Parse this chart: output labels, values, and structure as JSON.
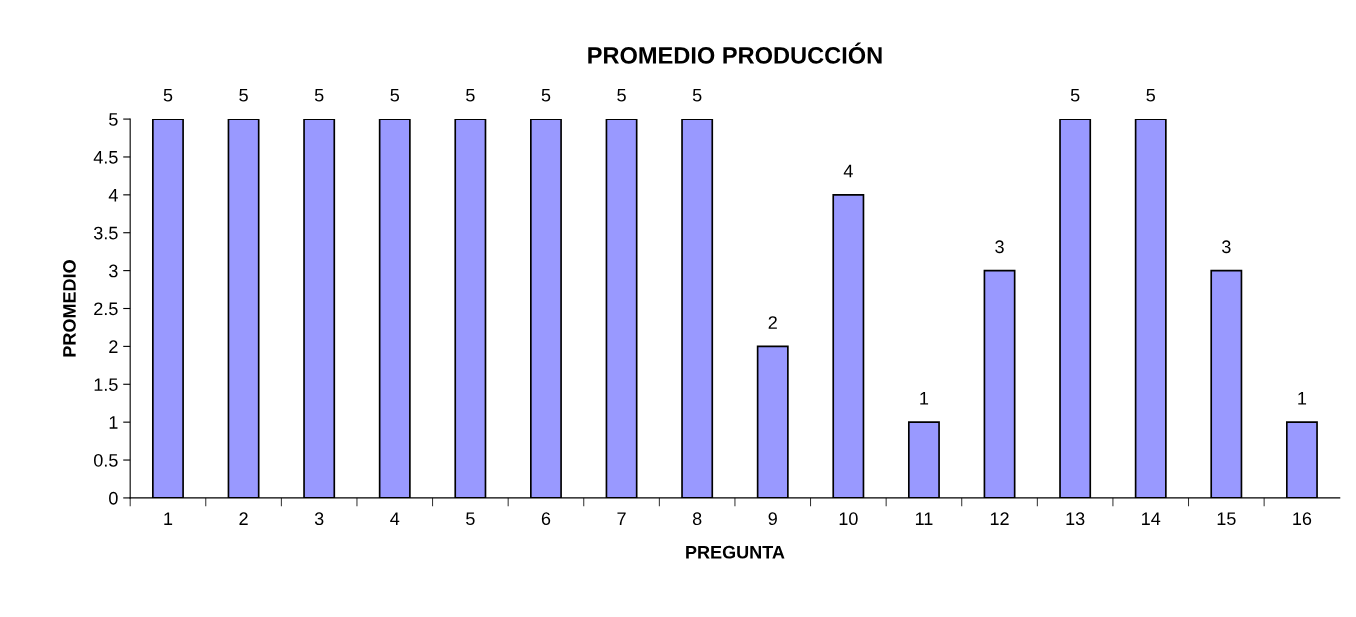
{
  "chart_data": {
    "type": "bar",
    "title": "PROMEDIO PRODUCCIÓN",
    "xlabel": "PREGUNTA",
    "ylabel": "PROMEDIO",
    "categories": [
      "1",
      "2",
      "3",
      "4",
      "5",
      "6",
      "7",
      "8",
      "9",
      "10",
      "11",
      "12",
      "13",
      "14",
      "15",
      "16"
    ],
    "values": [
      5,
      5,
      5,
      5,
      5,
      5,
      5,
      5,
      2,
      4,
      1,
      3,
      5,
      5,
      3,
      1
    ],
    "color": "#9999ff",
    "ylim": [
      0,
      5
    ],
    "yticks": [
      0,
      0.5,
      1,
      1.5,
      2,
      2.5,
      3,
      3.5,
      4,
      4.5,
      5
    ],
    "data_labels": true,
    "grid": false,
    "legend": false
  }
}
